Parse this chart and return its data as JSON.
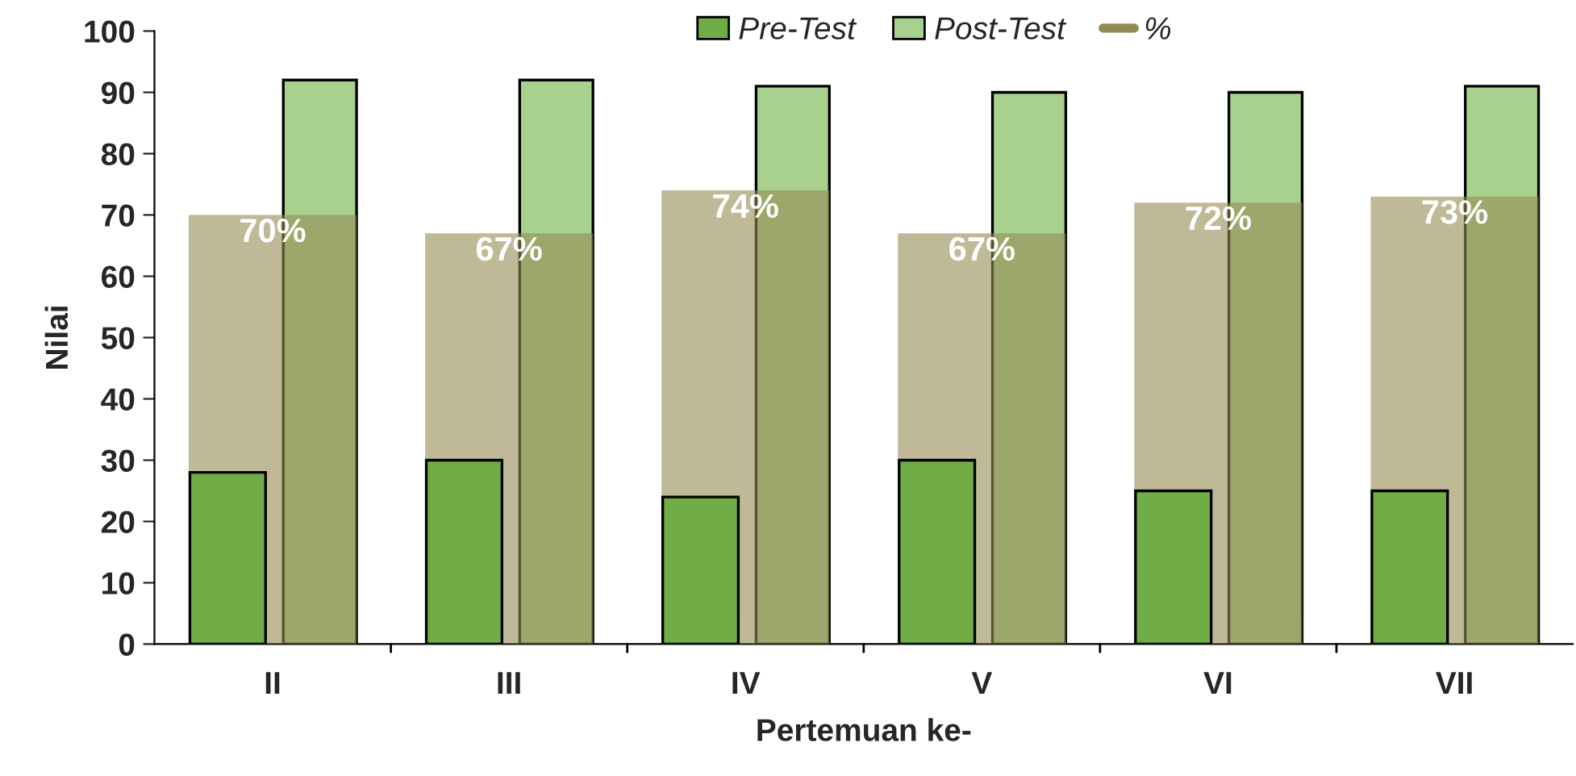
{
  "chart_data": {
    "type": "bar",
    "xlabel": "Pertemuan ke-",
    "ylabel": "Nilai",
    "categories": [
      "II",
      "III",
      "IV",
      "V",
      "VI",
      "VII"
    ],
    "series": [
      {
        "name": "Pre-Test",
        "color": "#70ad47",
        "values": [
          28,
          30,
          24,
          30,
          25,
          25
        ]
      },
      {
        "name": "Post-Test",
        "color": "#a9d18e",
        "values": [
          92,
          92,
          91,
          90,
          90,
          91
        ]
      },
      {
        "name": "%",
        "color": "#948a54",
        "values": [
          70,
          67,
          74,
          67,
          72,
          73
        ],
        "value_labels": [
          "70%",
          "67%",
          "74%",
          "67%",
          "72%",
          "73%"
        ]
      }
    ],
    "ylim": [
      0,
      100
    ],
    "yticks": [
      0,
      10,
      20,
      30,
      40,
      50,
      60,
      70,
      80,
      90,
      100
    ],
    "grid": false,
    "legend": "top"
  }
}
